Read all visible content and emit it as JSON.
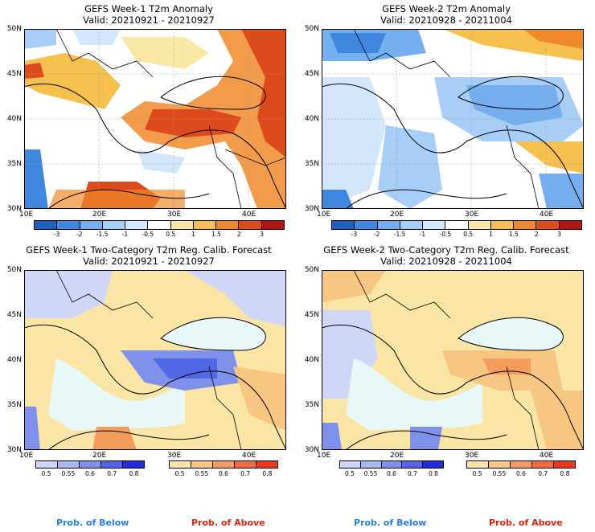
{
  "panels": [
    {
      "id": "p1",
      "title": "GEFS Week-1 T2m Anomaly",
      "valid": "Valid: 20210921 - 20210927"
    },
    {
      "id": "p2",
      "title": "GEFS Week-2 T2m Anomaly",
      "valid": "Valid: 20210928 - 20211004"
    },
    {
      "id": "p3",
      "title": "GEFS Week-1 Two-Category T2m Reg. Calib. Forecast",
      "valid": "Valid: 20210921 - 20210927"
    },
    {
      "id": "p4",
      "title": "GEFS Week-2 Two-Category T2m Reg. Calib. Forecast",
      "valid": "Valid: 20210928 - 20211004"
    }
  ],
  "lat_labels": [
    "50N",
    "45N",
    "40N",
    "35N",
    "30N"
  ],
  "lon_labels": [
    "10E",
    "20E",
    "30E",
    "40E"
  ],
  "anomaly_colorbar": {
    "labels": [
      "-3",
      "-2",
      "-1.5",
      "-1",
      "-0.5",
      "0.5",
      "1",
      "1.5",
      "2",
      "3"
    ],
    "colors": [
      "#1f5fbf",
      "#3f86de",
      "#76aff0",
      "#a8cdf6",
      "#d3e6fb",
      "#ffffff",
      "#fbe7a6",
      "#f6c04f",
      "#ef8a2c",
      "#dd4a1c",
      "#b51414"
    ]
  },
  "prob_below_colorbar": {
    "labels": [
      "0.5",
      "0.55",
      "0.6",
      "0.7",
      "0.8"
    ],
    "colors": [
      "#d0d7f6",
      "#a9b6f0",
      "#7f91ea",
      "#5168e4",
      "#1d2ed8"
    ]
  },
  "prob_above_colorbar": {
    "labels": [
      "0.5",
      "0.55",
      "0.6",
      "0.7",
      "0.8"
    ],
    "colors": [
      "#fbe5a6",
      "#f7c683",
      "#f39c5c",
      "#ee6e3c",
      "#e63a1c"
    ]
  },
  "legend": {
    "below": "Prob. of Below",
    "above": "Prob. of Above",
    "below_color": "#2a7de1",
    "above_color": "#e02214"
  },
  "colors": {
    "sea_prob": "#e8f8f8",
    "land_default": "#ffffff"
  }
}
